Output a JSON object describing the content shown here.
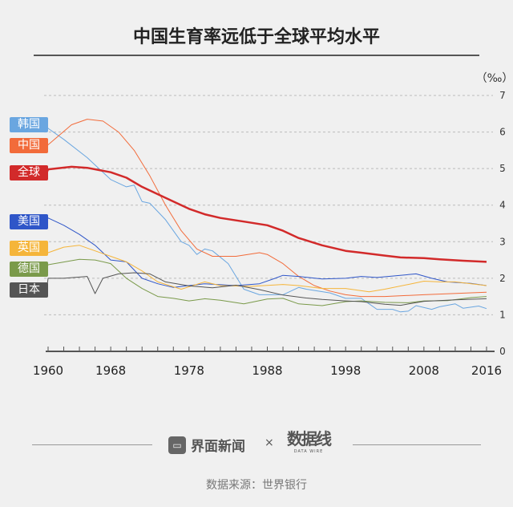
{
  "chart_data": {
    "type": "line",
    "title": "中国生育率远低于全球平均水平",
    "unit_label": "（‰）",
    "xlim": [
      1960,
      2016
    ],
    "ylim": [
      0,
      7
    ],
    "x_ticks": [
      1960,
      1968,
      1978,
      1988,
      1998,
      2008,
      2016
    ],
    "y_ticks": [
      0,
      1,
      2,
      3,
      4,
      5,
      6,
      7
    ],
    "grid": "horizontal dashed",
    "legend_placement": "left, labels at line starts",
    "series": [
      {
        "name": "韩国",
        "color": "#6aa6e0",
        "points": [
          [
            1960,
            6.1
          ],
          [
            1962,
            5.8
          ],
          [
            1965,
            5.3
          ],
          [
            1968,
            4.7
          ],
          [
            1970,
            4.5
          ],
          [
            1971,
            4.55
          ],
          [
            1972,
            4.1
          ],
          [
            1973,
            4.05
          ],
          [
            1975,
            3.6
          ],
          [
            1977,
            3.0
          ],
          [
            1978,
            2.9
          ],
          [
            1979,
            2.65
          ],
          [
            1980,
            2.8
          ],
          [
            1981,
            2.75
          ],
          [
            1983,
            2.4
          ],
          [
            1985,
            1.7
          ],
          [
            1987,
            1.55
          ],
          [
            1990,
            1.55
          ],
          [
            1992,
            1.75
          ],
          [
            1993,
            1.7
          ],
          [
            1996,
            1.6
          ],
          [
            1998,
            1.45
          ],
          [
            2000,
            1.45
          ],
          [
            2002,
            1.15
          ],
          [
            2004,
            1.15
          ],
          [
            2005,
            1.08
          ],
          [
            2006,
            1.1
          ],
          [
            2007,
            1.25
          ],
          [
            2009,
            1.15
          ],
          [
            2010,
            1.22
          ],
          [
            2012,
            1.3
          ],
          [
            2013,
            1.18
          ],
          [
            2015,
            1.24
          ],
          [
            2016,
            1.17
          ]
        ]
      },
      {
        "name": "中国",
        "color": "#f26b3a",
        "points": [
          [
            1960,
            5.65
          ],
          [
            1963,
            6.2
          ],
          [
            1965,
            6.35
          ],
          [
            1967,
            6.3
          ],
          [
            1969,
            6.0
          ],
          [
            1971,
            5.5
          ],
          [
            1973,
            4.8
          ],
          [
            1975,
            4.0
          ],
          [
            1977,
            3.3
          ],
          [
            1979,
            2.8
          ],
          [
            1981,
            2.6
          ],
          [
            1984,
            2.6
          ],
          [
            1987,
            2.7
          ],
          [
            1988,
            2.65
          ],
          [
            1990,
            2.4
          ],
          [
            1992,
            2.05
          ],
          [
            1994,
            1.8
          ],
          [
            1996,
            1.65
          ],
          [
            1998,
            1.55
          ],
          [
            2000,
            1.5
          ],
          [
            2003,
            1.5
          ],
          [
            2008,
            1.55
          ],
          [
            2016,
            1.62
          ]
        ]
      },
      {
        "name": "全球",
        "color": "#d22a2a",
        "points": [
          [
            1960,
            4.98
          ],
          [
            1963,
            5.05
          ],
          [
            1965,
            5.02
          ],
          [
            1968,
            4.9
          ],
          [
            1970,
            4.75
          ],
          [
            1972,
            4.5
          ],
          [
            1975,
            4.2
          ],
          [
            1978,
            3.9
          ],
          [
            1980,
            3.75
          ],
          [
            1982,
            3.65
          ],
          [
            1985,
            3.55
          ],
          [
            1988,
            3.45
          ],
          [
            1990,
            3.3
          ],
          [
            1992,
            3.1
          ],
          [
            1995,
            2.9
          ],
          [
            1998,
            2.75
          ],
          [
            2000,
            2.7
          ],
          [
            2003,
            2.62
          ],
          [
            2005,
            2.57
          ],
          [
            2008,
            2.55
          ],
          [
            2010,
            2.52
          ],
          [
            2013,
            2.48
          ],
          [
            2016,
            2.45
          ]
        ]
      },
      {
        "name": "美国",
        "color": "#2f56c8",
        "points": [
          [
            1960,
            3.65
          ],
          [
            1962,
            3.45
          ],
          [
            1964,
            3.2
          ],
          [
            1966,
            2.9
          ],
          [
            1968,
            2.5
          ],
          [
            1970,
            2.45
          ],
          [
            1972,
            2.0
          ],
          [
            1974,
            1.85
          ],
          [
            1976,
            1.75
          ],
          [
            1978,
            1.8
          ],
          [
            1980,
            1.85
          ],
          [
            1984,
            1.8
          ],
          [
            1987,
            1.85
          ],
          [
            1989,
            2.0
          ],
          [
            1990,
            2.08
          ],
          [
            1992,
            2.05
          ],
          [
            1995,
            1.98
          ],
          [
            1998,
            2.0
          ],
          [
            2000,
            2.05
          ],
          [
            2002,
            2.02
          ],
          [
            2006,
            2.1
          ],
          [
            2007,
            2.12
          ],
          [
            2009,
            2.0
          ],
          [
            2011,
            1.9
          ],
          [
            2014,
            1.86
          ],
          [
            2016,
            1.8
          ]
        ]
      },
      {
        "name": "英国",
        "color": "#f5b53a",
        "points": [
          [
            1960,
            2.7
          ],
          [
            1962,
            2.85
          ],
          [
            1964,
            2.9
          ],
          [
            1966,
            2.75
          ],
          [
            1968,
            2.6
          ],
          [
            1970,
            2.45
          ],
          [
            1972,
            2.2
          ],
          [
            1974,
            1.9
          ],
          [
            1977,
            1.7
          ],
          [
            1980,
            1.9
          ],
          [
            1982,
            1.8
          ],
          [
            1986,
            1.78
          ],
          [
            1990,
            1.83
          ],
          [
            1992,
            1.8
          ],
          [
            1995,
            1.72
          ],
          [
            1998,
            1.72
          ],
          [
            2001,
            1.63
          ],
          [
            2003,
            1.7
          ],
          [
            2006,
            1.83
          ],
          [
            2008,
            1.92
          ],
          [
            2010,
            1.9
          ],
          [
            2012,
            1.9
          ],
          [
            2016,
            1.8
          ]
        ]
      },
      {
        "name": "德国",
        "color": "#7a9a4a",
        "points": [
          [
            1960,
            2.37
          ],
          [
            1964,
            2.52
          ],
          [
            1966,
            2.5
          ],
          [
            1968,
            2.4
          ],
          [
            1970,
            2.0
          ],
          [
            1972,
            1.72
          ],
          [
            1974,
            1.5
          ],
          [
            1976,
            1.45
          ],
          [
            1978,
            1.38
          ],
          [
            1980,
            1.44
          ],
          [
            1982,
            1.4
          ],
          [
            1985,
            1.3
          ],
          [
            1988,
            1.43
          ],
          [
            1990,
            1.45
          ],
          [
            1992,
            1.3
          ],
          [
            1995,
            1.25
          ],
          [
            1998,
            1.36
          ],
          [
            2000,
            1.38
          ],
          [
            2003,
            1.34
          ],
          [
            2006,
            1.33
          ],
          [
            2008,
            1.38
          ],
          [
            2011,
            1.39
          ],
          [
            2014,
            1.47
          ],
          [
            2016,
            1.5
          ]
        ]
      },
      {
        "name": "日本",
        "color": "#555555",
        "points": [
          [
            1960,
            2.0
          ],
          [
            1962,
            2.0
          ],
          [
            1965,
            2.05
          ],
          [
            1966,
            1.58
          ],
          [
            1967,
            2.0
          ],
          [
            1969,
            2.12
          ],
          [
            1971,
            2.15
          ],
          [
            1973,
            2.12
          ],
          [
            1975,
            1.9
          ],
          [
            1978,
            1.79
          ],
          [
            1981,
            1.74
          ],
          [
            1984,
            1.81
          ],
          [
            1987,
            1.69
          ],
          [
            1990,
            1.54
          ],
          [
            1993,
            1.46
          ],
          [
            1995,
            1.42
          ],
          [
            1998,
            1.38
          ],
          [
            2000,
            1.36
          ],
          [
            2003,
            1.29
          ],
          [
            2005,
            1.26
          ],
          [
            2008,
            1.37
          ],
          [
            2012,
            1.41
          ],
          [
            2016,
            1.44
          ]
        ]
      }
    ]
  },
  "footer": {
    "brand": "界面新闻",
    "brand_icon": "window-icon",
    "times": "×",
    "partner_logo": "数据线",
    "partner_sub": "DATA WIRE",
    "source": "数据来源：世界银行"
  }
}
